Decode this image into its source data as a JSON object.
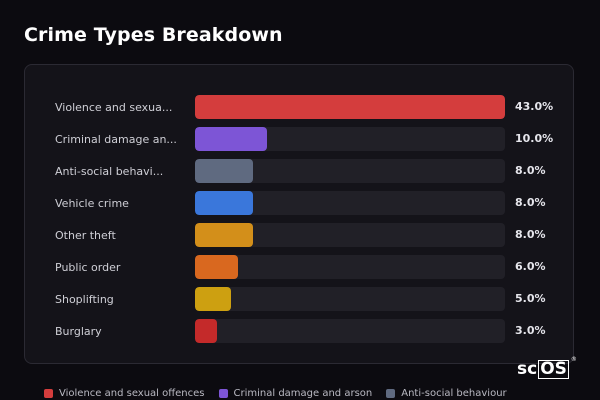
{
  "title": "Crime Types Breakdown",
  "chart_data": {
    "type": "bar",
    "orientation": "horizontal",
    "title": "Crime Types Breakdown",
    "unit": "%",
    "xlim": [
      0,
      43
    ],
    "grid": false,
    "legend_position": "bottom",
    "categories": [
      "Violence and sexua...",
      "Criminal damage an...",
      "Anti-social behavi...",
      "Vehicle crime",
      "Other theft",
      "Public order",
      "Shoplifting",
      "Burglary"
    ],
    "values": [
      43.0,
      10.0,
      8.0,
      8.0,
      8.0,
      6.0,
      5.0,
      3.0
    ],
    "value_labels": [
      "43.0%",
      "10.0%",
      "8.0%",
      "8.0%",
      "8.0%",
      "6.0%",
      "5.0%",
      "3.0%"
    ],
    "colors": [
      "#d43d3d",
      "#7d55d6",
      "#5f6a80",
      "#3a77db",
      "#d38f1a",
      "#d9681f",
      "#cda011",
      "#c42a2a"
    ]
  },
  "legend": [
    {
      "label": "Violence and sexual offences",
      "color": "#d43d3d"
    },
    {
      "label": "Criminal damage and arson",
      "color": "#7d55d6"
    },
    {
      "label": "Anti-social behaviour",
      "color": "#5f6a80"
    }
  ],
  "brand": {
    "prefix": "sc",
    "boxed": "OS",
    "reg": "®"
  }
}
